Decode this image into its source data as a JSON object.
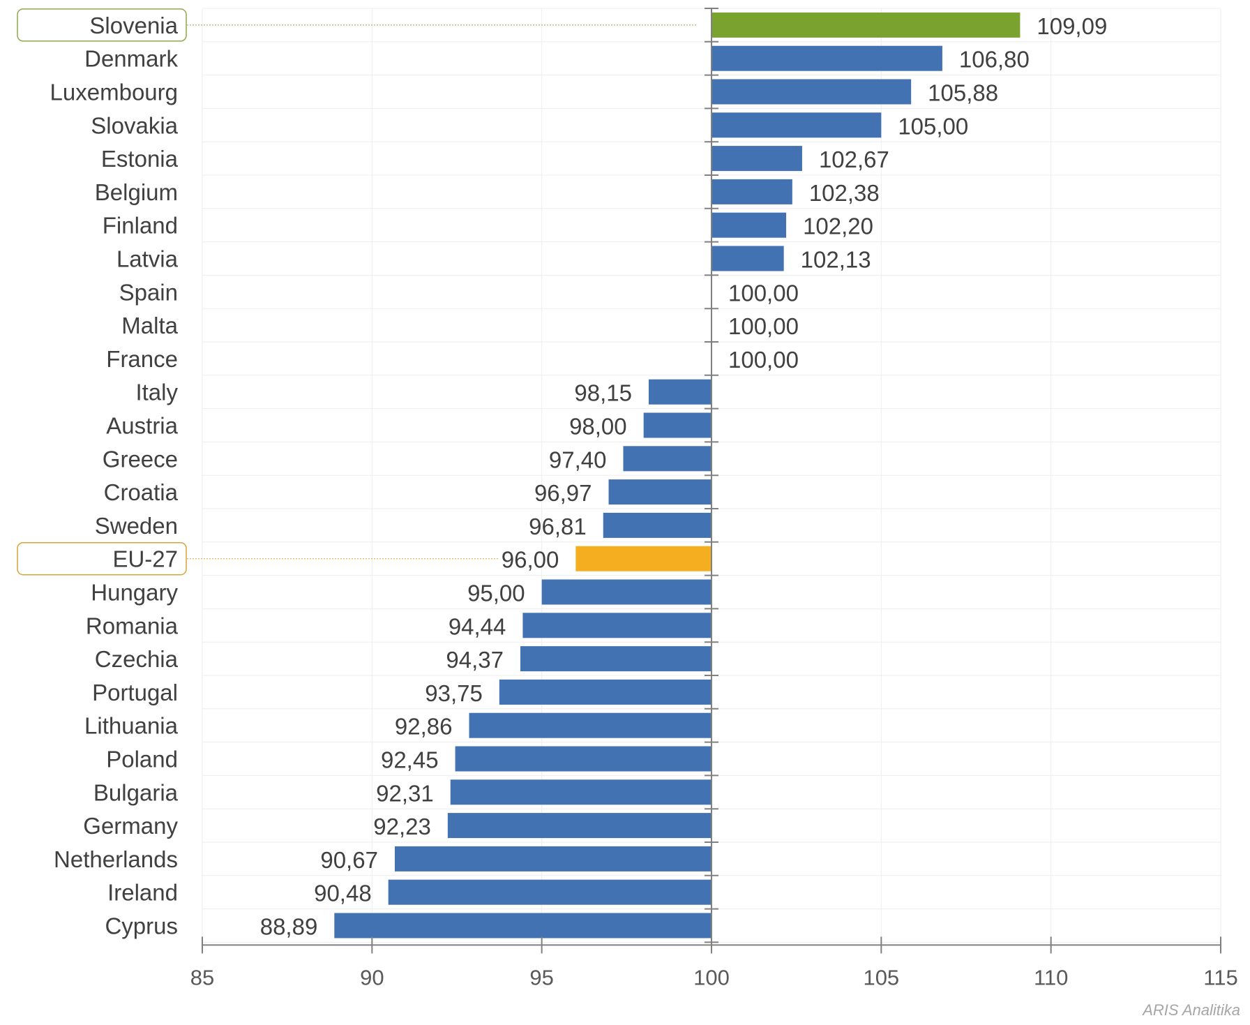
{
  "chart_data": {
    "type": "bar",
    "orientation": "horizontal",
    "baseline": 100,
    "xlim": [
      85,
      115
    ],
    "xticks": [
      85,
      90,
      95,
      100,
      105,
      110,
      115
    ],
    "grid": true,
    "categories": [
      "Slovenia",
      "Denmark",
      "Luxembourg",
      "Slovakia",
      "Estonia",
      "Belgium",
      "Finland",
      "Latvia",
      "Spain",
      "Malta",
      "France",
      "Italy",
      "Austria",
      "Greece",
      "Croatia",
      "Sweden",
      "EU-27",
      "Hungary",
      "Romania",
      "Czechia",
      "Portugal",
      "Lithuania",
      "Poland",
      "Bulgaria",
      "Germany",
      "Netherlands",
      "Ireland",
      "Cyprus"
    ],
    "values": [
      109.09,
      106.8,
      105.88,
      105.0,
      102.67,
      102.38,
      102.2,
      102.13,
      100.0,
      100.0,
      100.0,
      98.15,
      98.0,
      97.4,
      96.97,
      96.81,
      96.0,
      95.0,
      94.44,
      94.37,
      93.75,
      92.86,
      92.45,
      92.31,
      92.23,
      90.67,
      90.48,
      88.89
    ],
    "value_labels": [
      "109,09",
      "106,80",
      "105,88",
      "105,00",
      "102,67",
      "102,38",
      "102,20",
      "102,13",
      "100,00",
      "100,00",
      "100,00",
      "98,15",
      "98,00",
      "97,40",
      "96,97",
      "96,81",
      "96,00",
      "95,00",
      "94,44",
      "94,37",
      "93,75",
      "92,86",
      "92,45",
      "92,31",
      "92,23",
      "90,67",
      "90,48",
      "88,89"
    ],
    "highlight": {
      "Slovenia": "#7aa22f",
      "EU-27": "#f5ae1f"
    },
    "colors": {
      "default": "#4272b1",
      "axis": "#808080",
      "grid": "#ededed",
      "slovenia_frame": "#8fa84a",
      "eu_frame": "#d9a33c"
    },
    "source_credit": "ARIS Analitika"
  }
}
